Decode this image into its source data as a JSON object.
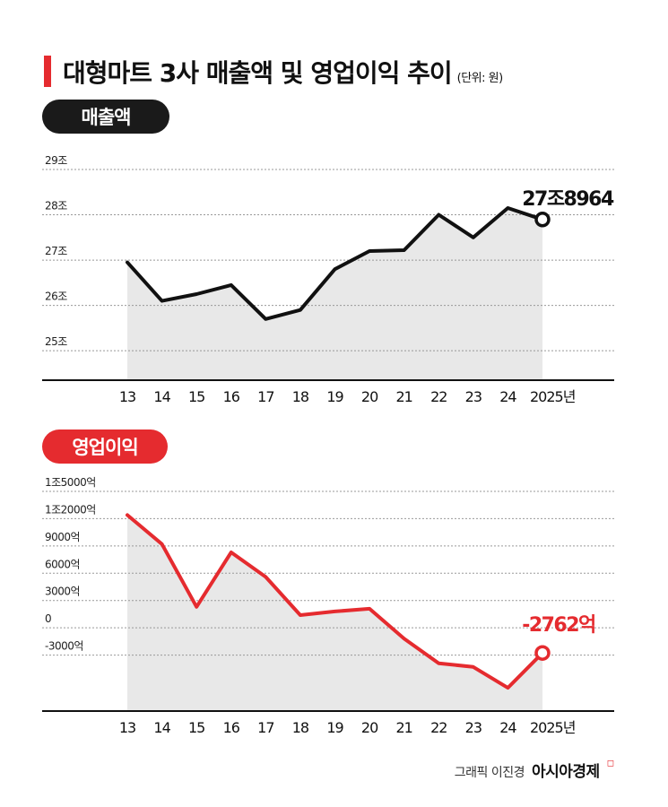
{
  "header": {
    "title": "대형마트 3사 매출액 및 영업이익 추이",
    "unit": "(단위: 원)"
  },
  "revenue_label": "매출액",
  "profit_label": "영업이익",
  "credit": {
    "byline": "그래픽 이진경",
    "brand": "아시아경제"
  },
  "colors": {
    "accent": "#e52b2f",
    "revenue_line": "#111111",
    "area_fill": "#e8e8e8",
    "gridline": "#999999",
    "axis": "#111111"
  },
  "chart_data": [
    {
      "type": "area",
      "title": "매출액",
      "categories": [
        "13",
        "14",
        "15",
        "16",
        "17",
        "18",
        "19",
        "20",
        "21",
        "22",
        "23",
        "24",
        "2025년"
      ],
      "series": [
        {
          "values": [
            26.95,
            26.1,
            26.25,
            26.45,
            25.7,
            25.9,
            26.8,
            27.2,
            27.22,
            28.0,
            27.5,
            28.15,
            27.8964
          ]
        }
      ],
      "yticks": [
        {
          "value": 25,
          "label": "25조"
        },
        {
          "value": 26,
          "label": "26조"
        },
        {
          "value": 27,
          "label": "27조"
        },
        {
          "value": 28,
          "label": "28조"
        },
        {
          "value": 29,
          "label": "29조"
        }
      ],
      "ylim": [
        24.35,
        29.0
      ],
      "end_label": "27조8964",
      "grid": true
    },
    {
      "type": "area",
      "title": "영업이익",
      "categories": [
        "13",
        "14",
        "15",
        "16",
        "17",
        "18",
        "19",
        "20",
        "21",
        "22",
        "23",
        "24",
        "2025년"
      ],
      "series": [
        {
          "values": [
            12400,
            9200,
            2300,
            8300,
            5600,
            1400,
            1800,
            2100,
            -1200,
            -3900,
            -4300,
            -6600,
            -2762
          ]
        }
      ],
      "yticks": [
        {
          "value": -3000,
          "label": "-3000억"
        },
        {
          "value": 0,
          "label": "0"
        },
        {
          "value": 3000,
          "label": "3000억"
        },
        {
          "value": 6000,
          "label": "6000억"
        },
        {
          "value": 9000,
          "label": "9000억"
        },
        {
          "value": 12000,
          "label": "1조2000억"
        },
        {
          "value": 15000,
          "label": "1조5000억"
        }
      ],
      "ylim": [
        -9150,
        15000
      ],
      "end_label": "-2762억",
      "grid": true
    }
  ]
}
